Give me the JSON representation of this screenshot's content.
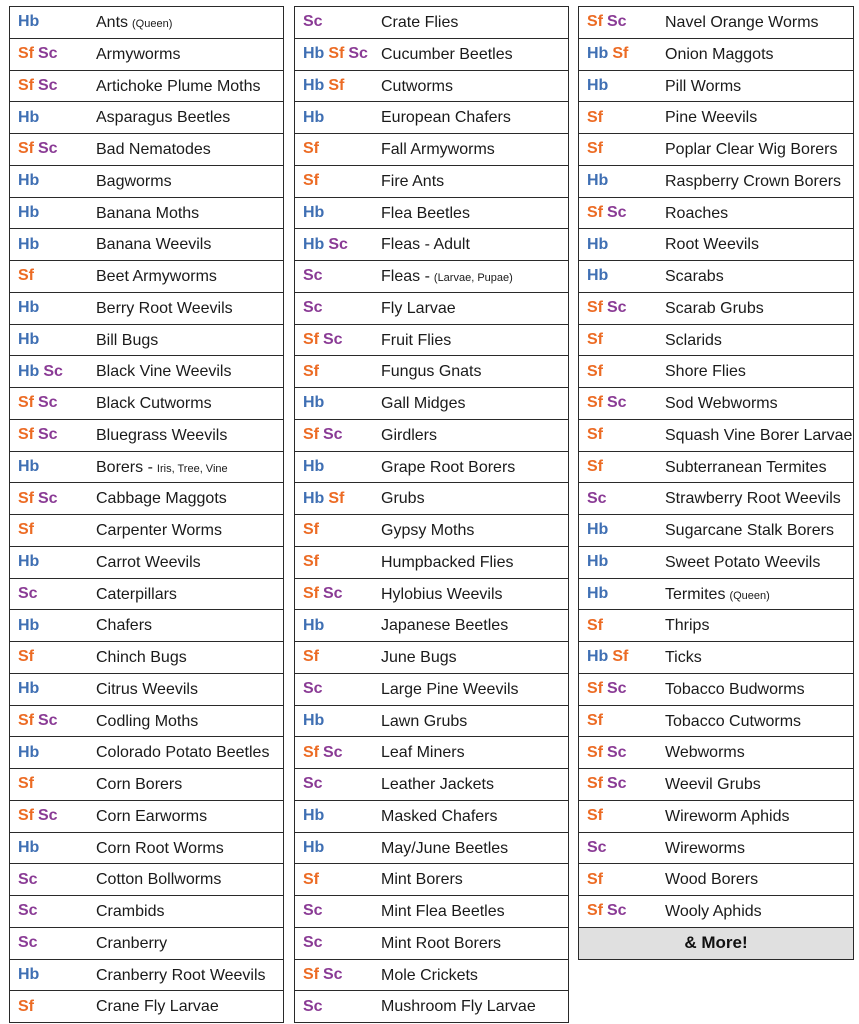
{
  "colors": {
    "Hb": "#3f6fb3",
    "Sf": "#ec6b24",
    "Sc": "#8a3b95"
  },
  "columns": [
    [
      {
        "codes": [
          "Hb"
        ],
        "name": "Ants",
        "note": "(Queen)"
      },
      {
        "codes": [
          "Sf",
          "Sc"
        ],
        "name": "Armyworms"
      },
      {
        "codes": [
          "Sf",
          "Sc"
        ],
        "name": "Artichoke Plume Moths"
      },
      {
        "codes": [
          "Hb"
        ],
        "name": "Asparagus Beetles"
      },
      {
        "codes": [
          "Sf",
          "Sc"
        ],
        "name": "Bad Nematodes"
      },
      {
        "codes": [
          "Hb"
        ],
        "name": "Bagworms"
      },
      {
        "codes": [
          "Hb"
        ],
        "name": "Banana Moths"
      },
      {
        "codes": [
          "Hb"
        ],
        "name": "Banana Weevils"
      },
      {
        "codes": [
          "Sf"
        ],
        "name": "Beet Armyworms"
      },
      {
        "codes": [
          "Hb"
        ],
        "name": "Berry Root Weevils"
      },
      {
        "codes": [
          "Hb"
        ],
        "name": "Bill Bugs"
      },
      {
        "codes": [
          "Hb",
          "Sc"
        ],
        "name": "Black Vine Weevils"
      },
      {
        "codes": [
          "Sf",
          "Sc"
        ],
        "name": "Black Cutworms"
      },
      {
        "codes": [
          "Sf",
          "Sc"
        ],
        "name": "Bluegrass Weevils"
      },
      {
        "codes": [
          "Hb"
        ],
        "name": "Borers -",
        "note": "Iris, Tree, Vine"
      },
      {
        "codes": [
          "Sf",
          "Sc"
        ],
        "name": "Cabbage Maggots"
      },
      {
        "codes": [
          "Sf"
        ],
        "name": "Carpenter Worms"
      },
      {
        "codes": [
          "Hb"
        ],
        "name": "Carrot Weevils"
      },
      {
        "codes": [
          "Sc"
        ],
        "name": "Caterpillars"
      },
      {
        "codes": [
          "Hb"
        ],
        "name": "Chafers"
      },
      {
        "codes": [
          "Sf"
        ],
        "name": "Chinch Bugs"
      },
      {
        "codes": [
          "Hb"
        ],
        "name": "Citrus Weevils"
      },
      {
        "codes": [
          "Sf",
          "Sc"
        ],
        "name": "Codling Moths"
      },
      {
        "codes": [
          "Hb"
        ],
        "name": "Colorado Potato Beetles"
      },
      {
        "codes": [
          "Sf"
        ],
        "name": "Corn Borers"
      },
      {
        "codes": [
          "Sf",
          "Sc"
        ],
        "name": "Corn Earworms"
      },
      {
        "codes": [
          "Hb"
        ],
        "name": "Corn Root Worms"
      },
      {
        "codes": [
          "Sc"
        ],
        "name": "Cotton Bollworms"
      },
      {
        "codes": [
          "Sc"
        ],
        "name": "Crambids"
      },
      {
        "codes": [
          "Sc"
        ],
        "name": "Cranberry"
      },
      {
        "codes": [
          "Hb"
        ],
        "name": "Cranberry Root Weevils"
      },
      {
        "codes": [
          "Sf"
        ],
        "name": "Crane Fly Larvae"
      }
    ],
    [
      {
        "codes": [
          "Sc"
        ],
        "name": "Crate Flies"
      },
      {
        "codes": [
          "Hb",
          "Sf",
          "Sc"
        ],
        "name": "Cucumber Beetles"
      },
      {
        "codes": [
          "Hb",
          "Sf"
        ],
        "name": "Cutworms"
      },
      {
        "codes": [
          "Hb"
        ],
        "name": "European Chafers"
      },
      {
        "codes": [
          "Sf"
        ],
        "name": "Fall Armyworms"
      },
      {
        "codes": [
          "Sf"
        ],
        "name": "Fire Ants"
      },
      {
        "codes": [
          "Hb"
        ],
        "name": "Flea Beetles"
      },
      {
        "codes": [
          "Hb",
          "Sc"
        ],
        "name": "Fleas - Adult"
      },
      {
        "codes": [
          "Sc"
        ],
        "name": "Fleas -",
        "note": "(Larvae, Pupae)"
      },
      {
        "codes": [
          "Sc"
        ],
        "name": "Fly Larvae"
      },
      {
        "codes": [
          "Sf",
          "Sc"
        ],
        "name": "Fruit Flies"
      },
      {
        "codes": [
          "Sf"
        ],
        "name": "Fungus Gnats"
      },
      {
        "codes": [
          "Hb"
        ],
        "name": "Gall Midges"
      },
      {
        "codes": [
          "Sf",
          "Sc"
        ],
        "name": "Girdlers"
      },
      {
        "codes": [
          "Hb"
        ],
        "name": "Grape Root Borers"
      },
      {
        "codes": [
          "Hb",
          "Sf"
        ],
        "name": "Grubs"
      },
      {
        "codes": [
          "Sf"
        ],
        "name": "Gypsy Moths"
      },
      {
        "codes": [
          "Sf"
        ],
        "name": "Humpbacked Flies"
      },
      {
        "codes": [
          "Sf",
          "Sc"
        ],
        "name": "Hylobius Weevils"
      },
      {
        "codes": [
          "Hb"
        ],
        "name": "Japanese Beetles"
      },
      {
        "codes": [
          "Sf"
        ],
        "name": "June Bugs"
      },
      {
        "codes": [
          "Sc"
        ],
        "name": "Large Pine Weevils"
      },
      {
        "codes": [
          "Hb"
        ],
        "name": "Lawn Grubs"
      },
      {
        "codes": [
          "Sf",
          "Sc"
        ],
        "name": "Leaf Miners"
      },
      {
        "codes": [
          "Sc"
        ],
        "name": "Leather Jackets"
      },
      {
        "codes": [
          "Hb"
        ],
        "name": "Masked Chafers"
      },
      {
        "codes": [
          "Hb"
        ],
        "name": "May/June Beetles"
      },
      {
        "codes": [
          "Sf"
        ],
        "name": "Mint Borers"
      },
      {
        "codes": [
          "Sc"
        ],
        "name": "Mint Flea Beetles"
      },
      {
        "codes": [
          "Sc"
        ],
        "name": "Mint Root Borers"
      },
      {
        "codes": [
          "Sf",
          "Sc"
        ],
        "name": "Mole Crickets"
      },
      {
        "codes": [
          "Sc"
        ],
        "name": "Mushroom Fly Larvae"
      }
    ],
    [
      {
        "codes": [
          "Sf",
          "Sc"
        ],
        "name": "Navel Orange Worms"
      },
      {
        "codes": [
          "Hb",
          "Sf"
        ],
        "name": "Onion Maggots"
      },
      {
        "codes": [
          "Hb"
        ],
        "name": "Pill Worms"
      },
      {
        "codes": [
          "Sf"
        ],
        "name": "Pine Weevils"
      },
      {
        "codes": [
          "Sf"
        ],
        "name": "Poplar Clear Wig Borers"
      },
      {
        "codes": [
          "Hb"
        ],
        "name": "Raspberry Crown Borers"
      },
      {
        "codes": [
          "Sf",
          "Sc"
        ],
        "name": "Roaches"
      },
      {
        "codes": [
          "Hb"
        ],
        "name": "Root Weevils"
      },
      {
        "codes": [
          "Hb"
        ],
        "name": "Scarabs"
      },
      {
        "codes": [
          "Sf",
          "Sc"
        ],
        "name": "Scarab Grubs"
      },
      {
        "codes": [
          "Sf"
        ],
        "name": "Sclarids"
      },
      {
        "codes": [
          "Sf"
        ],
        "name": "Shore Flies"
      },
      {
        "codes": [
          "Sf",
          "Sc"
        ],
        "name": "Sod Webworms"
      },
      {
        "codes": [
          "Sf"
        ],
        "name": "Squash Vine Borer Larvae"
      },
      {
        "codes": [
          "Sf"
        ],
        "name": "Subterranean Termites"
      },
      {
        "codes": [
          "Sc"
        ],
        "name": "Strawberry Root Weevils"
      },
      {
        "codes": [
          "Hb"
        ],
        "name": "Sugarcane Stalk Borers"
      },
      {
        "codes": [
          "Hb"
        ],
        "name": "Sweet Potato Weevils"
      },
      {
        "codes": [
          "Hb"
        ],
        "name": "Termites",
        "note": "(Queen)"
      },
      {
        "codes": [
          "Sf"
        ],
        "name": "Thrips"
      },
      {
        "codes": [
          "Hb",
          "Sf"
        ],
        "name": "Ticks"
      },
      {
        "codes": [
          "Sf",
          "Sc"
        ],
        "name": "Tobacco Budworms"
      },
      {
        "codes": [
          "Sf"
        ],
        "name": "Tobacco Cutworms"
      },
      {
        "codes": [
          "Sf",
          "Sc"
        ],
        "name": "Webworms"
      },
      {
        "codes": [
          "Sf",
          "Sc"
        ],
        "name": "Weevil Grubs"
      },
      {
        "codes": [
          "Sf"
        ],
        "name": "Wireworm Aphids"
      },
      {
        "codes": [
          "Sc"
        ],
        "name": "Wireworms"
      },
      {
        "codes": [
          "Sf"
        ],
        "name": "Wood Borers"
      },
      {
        "codes": [
          "Sf",
          "Sc"
        ],
        "name": "Wooly Aphids"
      }
    ]
  ],
  "more_label": "& More!"
}
